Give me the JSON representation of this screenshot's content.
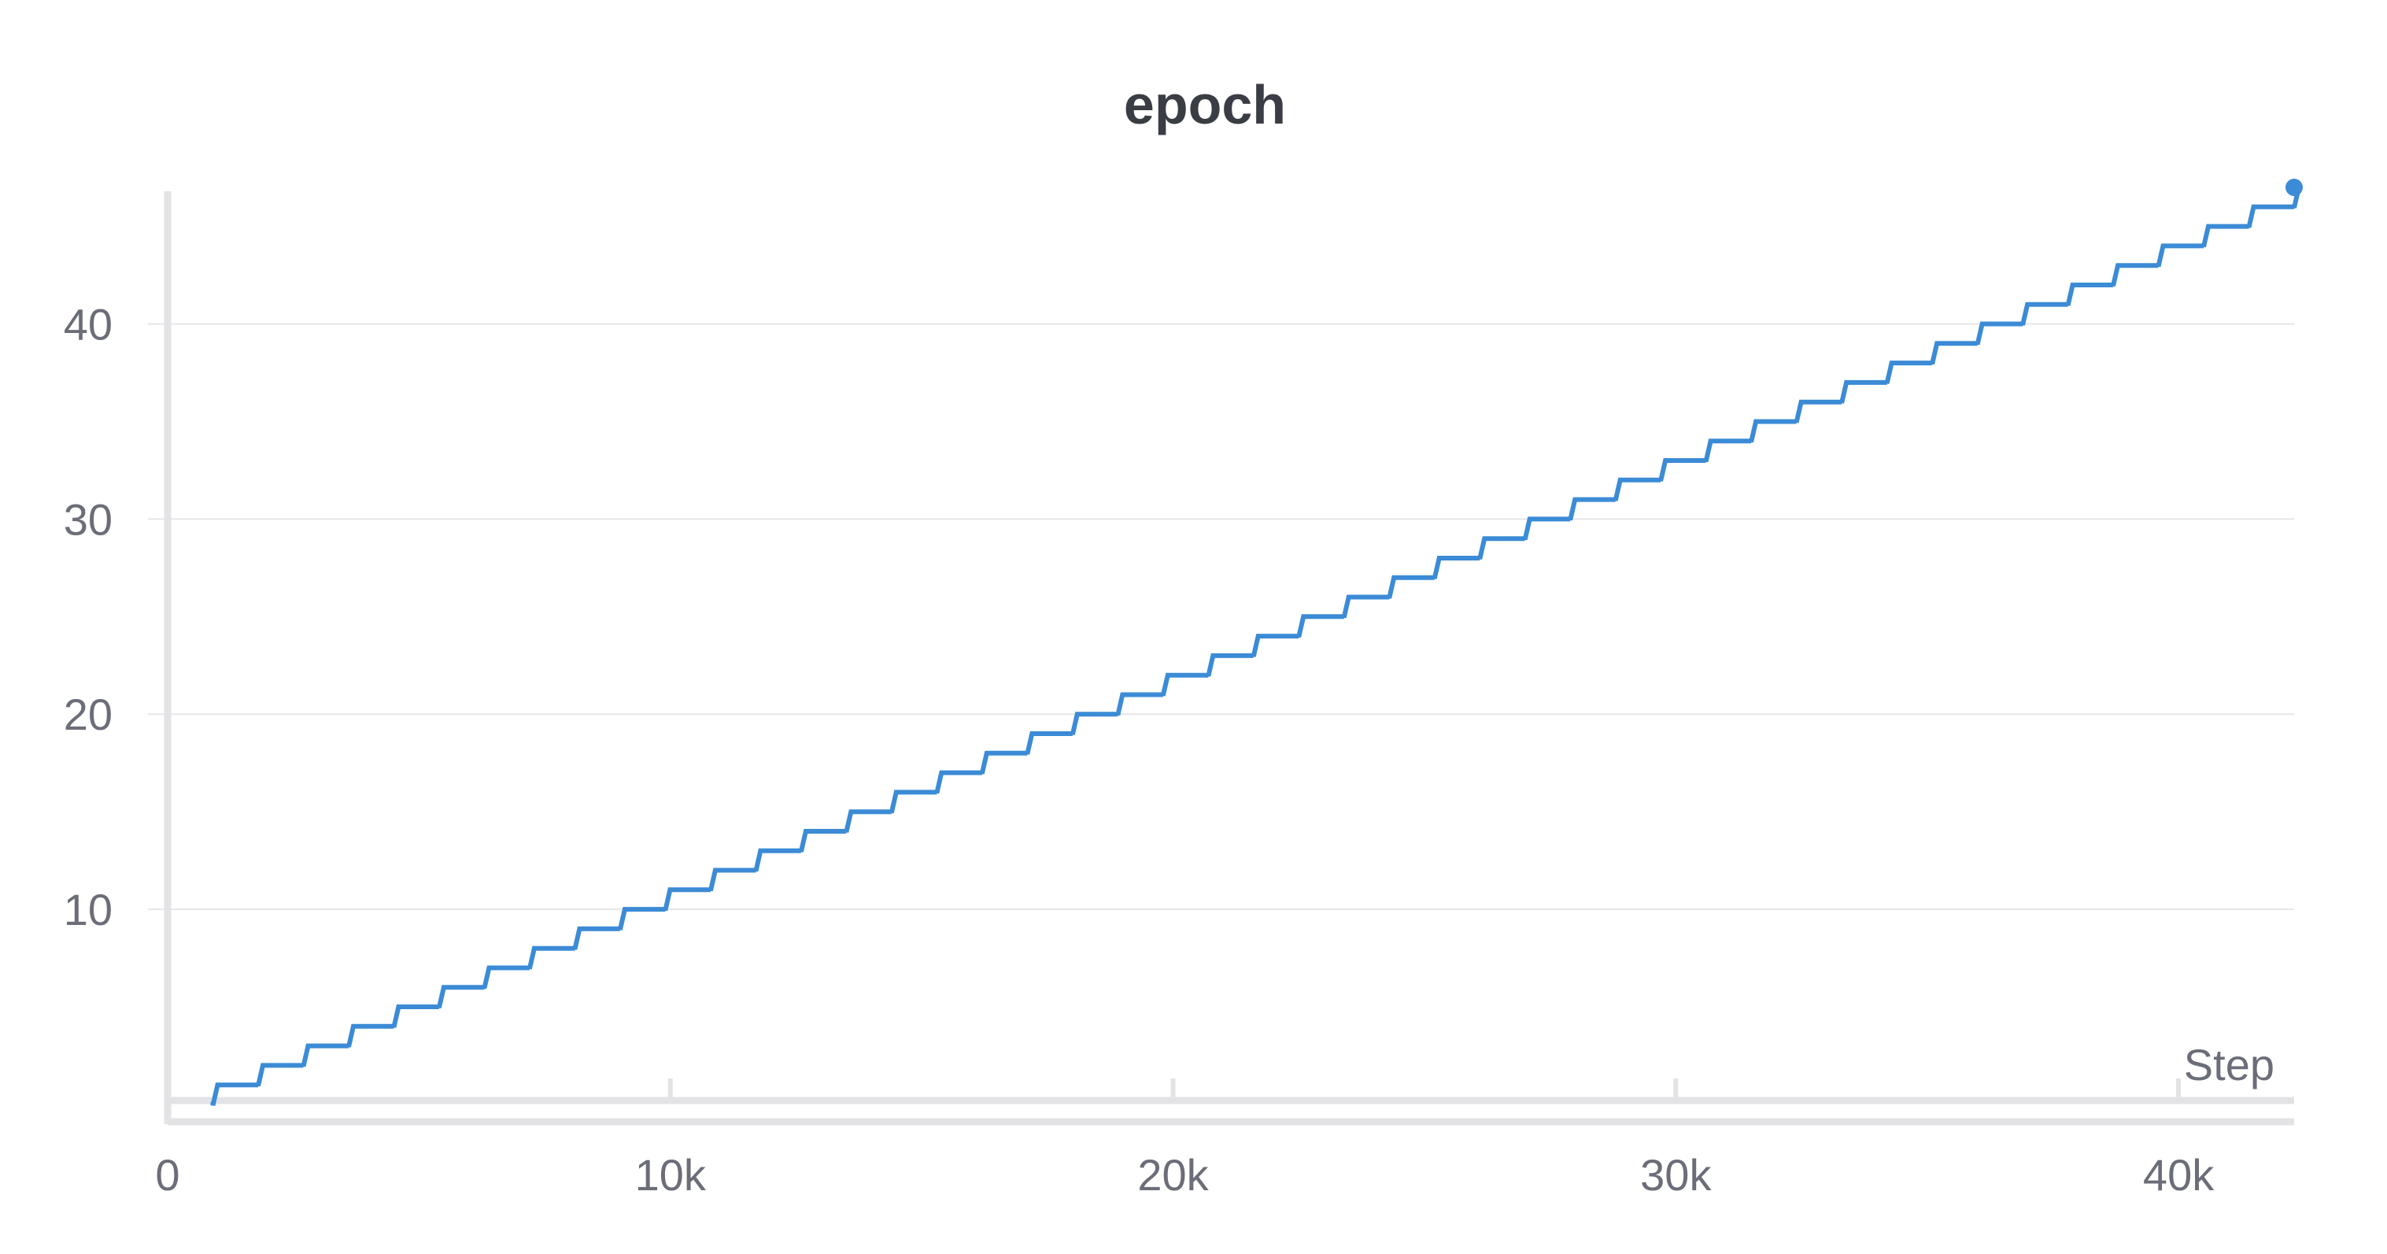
{
  "chart_data": {
    "type": "line",
    "title": "epoch",
    "xlabel": "Step",
    "ylabel": "",
    "xlim": [
      0,
      42300
    ],
    "ylim": [
      0.2,
      46.8
    ],
    "x_ticks": [
      {
        "value": 0,
        "label": "0"
      },
      {
        "value": 10000,
        "label": "10k"
      },
      {
        "value": 20000,
        "label": "20k"
      },
      {
        "value": 30000,
        "label": "30k"
      },
      {
        "value": 40000,
        "label": "40k"
      }
    ],
    "y_ticks": [
      {
        "value": 10,
        "label": "10"
      },
      {
        "value": 20,
        "label": "20"
      },
      {
        "value": 30,
        "label": "30"
      },
      {
        "value": 40,
        "label": "40"
      }
    ],
    "grid": true,
    "legend": false,
    "line_shape": "step",
    "color": "#3b8bd6",
    "series": [
      {
        "steps_per_epoch": 900,
        "first_step": 900,
        "epoch_start": 1,
        "epoch_end": 47,
        "last_step": 42300,
        "endpoint": {
          "x": 42300,
          "y": 47
        }
      }
    ]
  }
}
